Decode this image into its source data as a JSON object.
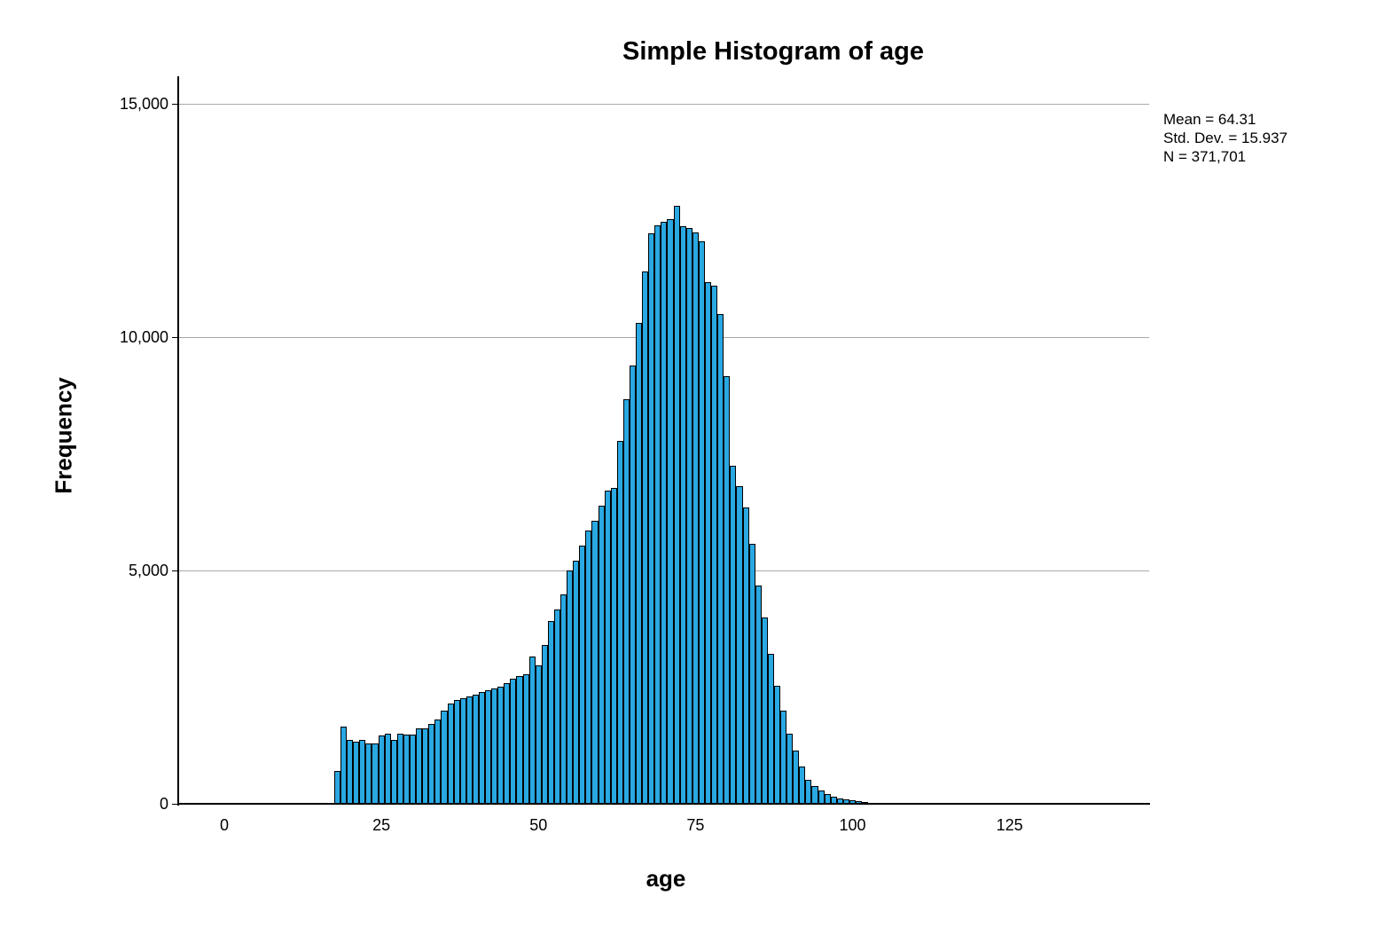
{
  "figure": {
    "title": "Simple Histogram of age"
  },
  "stats_box": {
    "lines": [
      "Mean = 64.31",
      "Std. Dev. = 15.937",
      "N = 371,701"
    ]
  },
  "chart_data": {
    "type": "bar",
    "subtype": "histogram",
    "title": "Simple Histogram of age",
    "xlabel": "age",
    "ylabel": "Frequency",
    "legend": "none",
    "grid": "horizontal",
    "gridline_values": [
      5000,
      10000,
      15000
    ],
    "gridline_color": "#a8a8a8",
    "bar_color": "#29a8e2",
    "bar_edge_color": "#000000",
    "background_color": "#ffffff",
    "xlim": [
      -7.5,
      147.5
    ],
    "ylim": [
      0,
      15600
    ],
    "x_tick_values": [
      0,
      25,
      50,
      75,
      100,
      125
    ],
    "x_tick_labels": [
      "0",
      "25",
      "50",
      "75",
      "100",
      "125"
    ],
    "y_tick_values": [
      0,
      5000,
      10000,
      15000
    ],
    "y_tick_labels": [
      "0",
      "5,000",
      "10,000",
      "15,000"
    ],
    "bin_width": 1,
    "ages": [
      18,
      19,
      20,
      21,
      22,
      23,
      24,
      25,
      26,
      27,
      28,
      29,
      30,
      31,
      32,
      33,
      34,
      35,
      36,
      37,
      38,
      39,
      40,
      41,
      42,
      43,
      44,
      45,
      46,
      47,
      48,
      49,
      50,
      51,
      52,
      53,
      54,
      55,
      56,
      57,
      58,
      59,
      60,
      61,
      62,
      63,
      64,
      65,
      66,
      67,
      68,
      69,
      70,
      71,
      72,
      73,
      74,
      75,
      76,
      77,
      78,
      79,
      80,
      81,
      82,
      83,
      84,
      85,
      86,
      87,
      88,
      89,
      90,
      91,
      92,
      93,
      94,
      95,
      96,
      97,
      98,
      99,
      100,
      101,
      102,
      103
    ],
    "frequencies": [
      700,
      1660,
      1360,
      1340,
      1360,
      1300,
      1300,
      1470,
      1510,
      1370,
      1510,
      1490,
      1490,
      1620,
      1620,
      1720,
      1810,
      2000,
      2150,
      2220,
      2260,
      2300,
      2330,
      2400,
      2440,
      2470,
      2510,
      2590,
      2680,
      2740,
      2780,
      3150,
      2960,
      3400,
      3910,
      4160,
      4480,
      5000,
      5210,
      5530,
      5850,
      6060,
      6380,
      6710,
      6760,
      7770,
      8660,
      9400,
      10300,
      11400,
      12220,
      12400,
      12480,
      12520,
      12810,
      12370,
      12330,
      12240,
      12060,
      11170,
      11100,
      10500,
      9160,
      7240,
      6800,
      6350,
      5570,
      4670,
      3990,
      3210,
      2530,
      2000,
      1500,
      1150,
      800,
      520,
      380,
      290,
      210,
      160,
      120,
      90,
      70,
      50,
      35,
      20
    ],
    "annotations": [
      "Mean = 64.31",
      "Std. Dev. = 15.937",
      "N = 371,701"
    ]
  }
}
